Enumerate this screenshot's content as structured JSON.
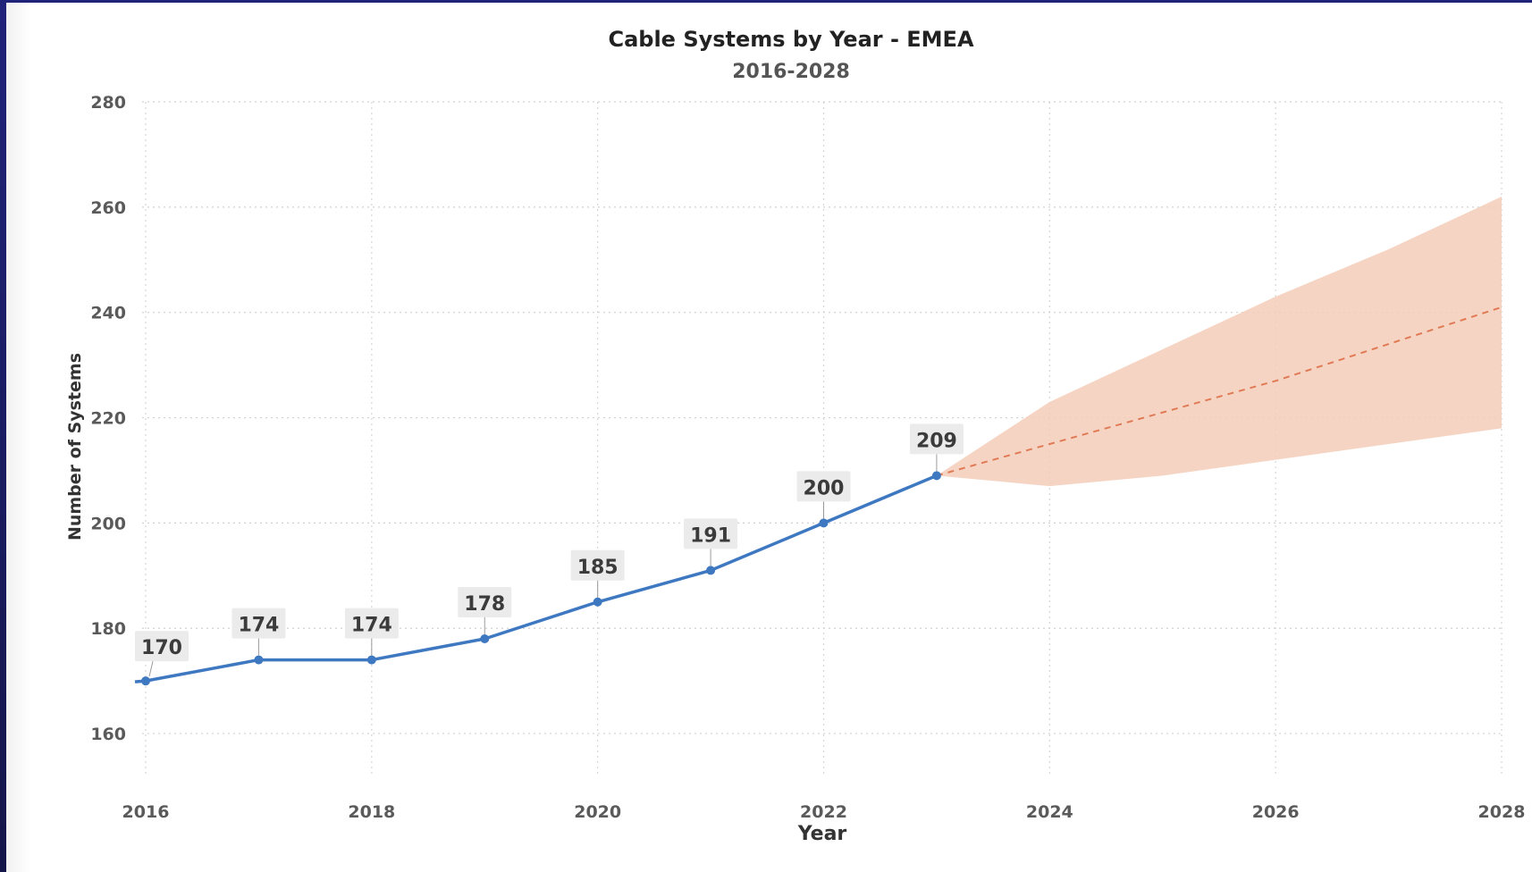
{
  "chart_data": {
    "type": "line",
    "title": "Cable Systems by Year - EMEA",
    "subtitle": "2016-2028",
    "xlabel": "Year",
    "ylabel": "Number of Systems",
    "xlim": [
      2016,
      2028
    ],
    "ylim": [
      150,
      280
    ],
    "x_ticks": [
      2016,
      2018,
      2020,
      2022,
      2024,
      2026,
      2028
    ],
    "y_ticks": [
      160,
      180,
      200,
      220,
      240,
      260,
      280
    ],
    "grid": true,
    "series": [
      {
        "x": [
          2016,
          2017,
          2018,
          2019,
          2020,
          2021,
          2022,
          2023
        ],
        "values": [
          170,
          174,
          174,
          178,
          185,
          191,
          200,
          209
        ],
        "color": "#3d78c1",
        "data_labels": true
      }
    ],
    "forecast": {
      "x": [
        2023,
        2024,
        2025,
        2026,
        2027,
        2028
      ],
      "values": [
        209,
        215,
        221,
        227,
        234,
        241
      ],
      "upper": [
        209,
        223,
        233,
        243,
        252,
        262
      ],
      "lower": [
        209,
        207,
        209,
        212,
        215,
        218
      ],
      "line_color": "#e07a55",
      "band_color": "#f5cdb8"
    }
  }
}
